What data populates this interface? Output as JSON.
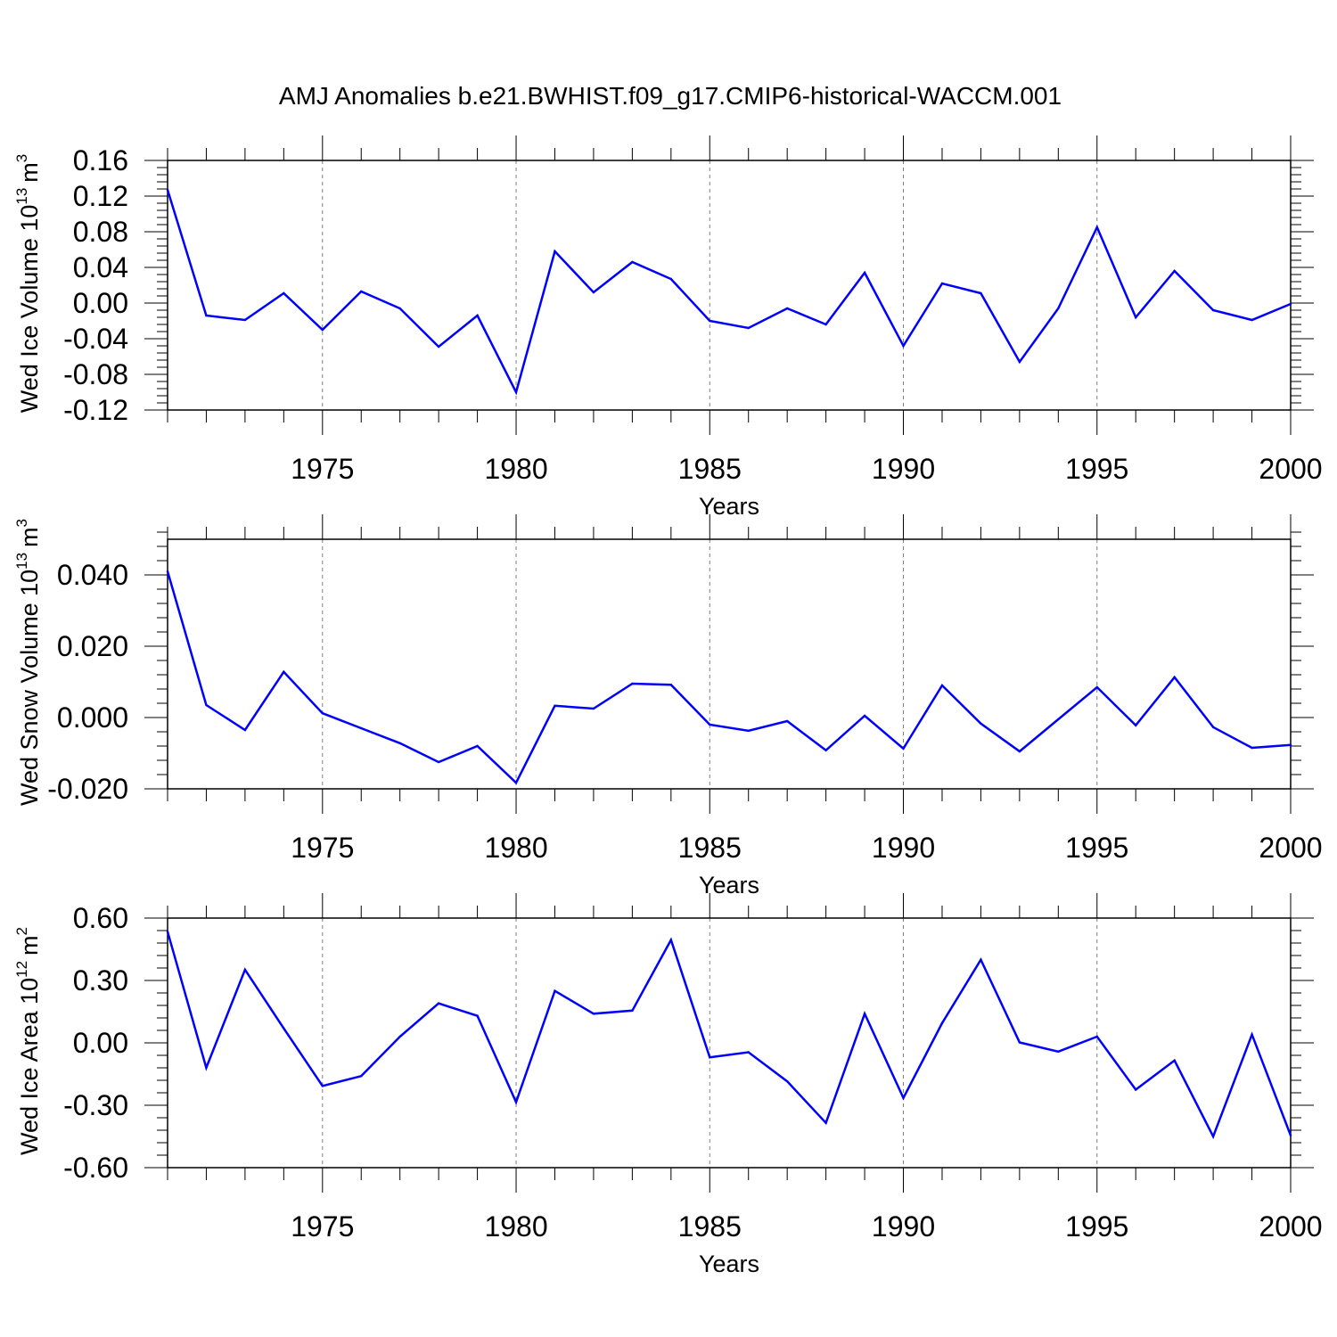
{
  "title": "AMJ Anomalies b.e21.BWHIST.f09_g17.CMIP6-historical-WACCM.001",
  "colors": {
    "line": "#0000ff",
    "axis": "#000000",
    "grid": "#7f7f7f"
  },
  "chart_data": [
    {
      "type": "line",
      "ylabel": "Wed Ice Volume 10",
      "ylabel_exp": "13",
      "ylabel_unit": "m",
      "ylabel_unit_exp": "3",
      "xlabel": "Years",
      "xlim": [
        1971,
        2000
      ],
      "ylim": [
        -0.12,
        0.16
      ],
      "yticks": [
        -0.12,
        -0.08,
        -0.04,
        0.0,
        0.04,
        0.08,
        0.12,
        0.16
      ],
      "ytick_labels": [
        "-0.12",
        "-0.08",
        "-0.04",
        "0.00",
        "0.04",
        "0.08",
        "0.12",
        "0.16"
      ],
      "xticks": [
        1975,
        1980,
        1985,
        1990,
        1995,
        2000
      ],
      "xtick_labels": [
        "1975",
        "1980",
        "1985",
        "1990",
        "1995",
        "2000"
      ],
      "x": [
        1971,
        1972,
        1973,
        1974,
        1975,
        1976,
        1977,
        1978,
        1979,
        1980,
        1981,
        1982,
        1983,
        1984,
        1985,
        1986,
        1987,
        1988,
        1989,
        1990,
        1991,
        1992,
        1993,
        1994,
        1995,
        1996,
        1997,
        1998,
        1999,
        2000
      ],
      "values": [
        0.127,
        -0.014,
        -0.019,
        0.011,
        -0.03,
        0.013,
        -0.006,
        -0.049,
        -0.014,
        -0.1,
        0.058,
        0.012,
        0.046,
        0.027,
        -0.02,
        -0.028,
        -0.006,
        -0.024,
        0.034,
        -0.048,
        0.022,
        0.011,
        -0.066,
        -0.006,
        0.085,
        -0.016,
        0.036,
        -0.008,
        -0.019,
        -0.001
      ]
    },
    {
      "type": "line",
      "ylabel": "Wed Snow Volume 10",
      "ylabel_exp": "13",
      "ylabel_unit": "m",
      "ylabel_unit_exp": "3",
      "xlabel": "Years",
      "xlim": [
        1971,
        2000
      ],
      "ylim": [
        -0.02,
        0.05
      ],
      "yticks": [
        -0.02,
        0.0,
        0.02,
        0.04
      ],
      "ytick_labels": [
        "-0.020",
        "0.000",
        "0.020",
        "0.040"
      ],
      "xticks": [
        1975,
        1980,
        1985,
        1990,
        1995,
        2000
      ],
      "xtick_labels": [
        "1975",
        "1980",
        "1985",
        "1990",
        "1995",
        "2000"
      ],
      "x": [
        1971,
        1972,
        1973,
        1974,
        1975,
        1976,
        1977,
        1978,
        1979,
        1980,
        1981,
        1982,
        1983,
        1984,
        1985,
        1986,
        1987,
        1988,
        1989,
        1990,
        1991,
        1992,
        1993,
        1994,
        1995,
        1996,
        1997,
        1998,
        1999,
        2000
      ],
      "values": [
        0.041,
        0.0035,
        -0.0035,
        0.0128,
        0.0012,
        -0.003,
        -0.0072,
        -0.0125,
        -0.008,
        -0.0183,
        0.0033,
        0.0025,
        0.0095,
        0.0092,
        -0.002,
        -0.0037,
        -0.001,
        -0.0092,
        0.0005,
        -0.0087,
        0.009,
        -0.0017,
        -0.0095,
        -0.0005,
        0.0085,
        -0.0022,
        0.0113,
        -0.0027,
        -0.0085,
        -0.0077
      ]
    },
    {
      "type": "line",
      "ylabel": "Wed Ice Area 10",
      "ylabel_exp": "12",
      "ylabel_unit": "m",
      "ylabel_unit_exp": "2",
      "xlabel": "Years",
      "xlim": [
        1971,
        2000
      ],
      "ylim": [
        -0.6,
        0.6
      ],
      "yticks": [
        -0.6,
        -0.3,
        0.0,
        0.3,
        0.6
      ],
      "ytick_labels": [
        "-0.60",
        "-0.30",
        "0.00",
        "0.30",
        "0.60"
      ],
      "xticks": [
        1975,
        1980,
        1985,
        1990,
        1995,
        2000
      ],
      "xtick_labels": [
        "1975",
        "1980",
        "1985",
        "1990",
        "1995",
        "2000"
      ],
      "x": [
        1971,
        1972,
        1973,
        1974,
        1975,
        1976,
        1977,
        1978,
        1979,
        1980,
        1981,
        1982,
        1983,
        1984,
        1985,
        1986,
        1987,
        1988,
        1989,
        1990,
        1991,
        1992,
        1993,
        1994,
        1995,
        1996,
        1997,
        1998,
        1999,
        2000
      ],
      "values": [
        0.535,
        -0.12,
        0.352,
        0.07,
        -0.207,
        -0.16,
        0.03,
        0.19,
        0.13,
        -0.285,
        0.25,
        0.14,
        0.155,
        0.495,
        -0.07,
        -0.045,
        -0.185,
        -0.385,
        0.14,
        -0.265,
        0.095,
        0.4,
        0.002,
        -0.042,
        0.03,
        -0.225,
        -0.085,
        -0.45,
        0.04,
        -0.445
      ]
    }
  ]
}
